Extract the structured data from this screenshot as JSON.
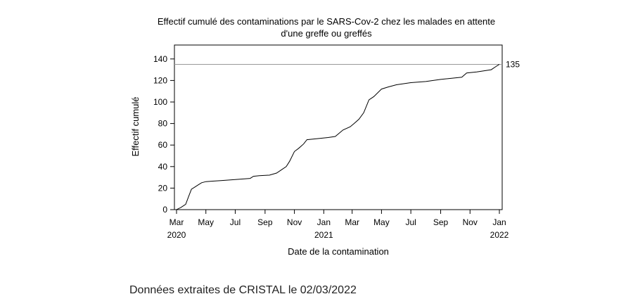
{
  "chart_data": {
    "type": "line",
    "title": [
      "Effectif cumulé des contaminations par le SARS-Cov-2 chez les malades en attente",
      "d'une greffe ou greffés"
    ],
    "xlabel": "Date de la contamination",
    "ylabel": "Effectif cumulé",
    "ylim": [
      0,
      150
    ],
    "yticks": [
      0,
      20,
      40,
      60,
      80,
      100,
      120,
      140
    ],
    "xlim": [
      "2020-03-01",
      "2022-01-01"
    ],
    "xticks": [
      {
        "date": "2020-03-01",
        "label": "Mar",
        "year": "2020"
      },
      {
        "date": "2020-05-01",
        "label": "May",
        "year": ""
      },
      {
        "date": "2020-07-01",
        "label": "Jul",
        "year": ""
      },
      {
        "date": "2020-09-01",
        "label": "Sep",
        "year": ""
      },
      {
        "date": "2020-11-01",
        "label": "Nov",
        "year": ""
      },
      {
        "date": "2021-01-01",
        "label": "Jan",
        "year": "2021"
      },
      {
        "date": "2021-03-01",
        "label": "Mar",
        "year": ""
      },
      {
        "date": "2021-05-01",
        "label": "May",
        "year": ""
      },
      {
        "date": "2021-07-01",
        "label": "Jul",
        "year": ""
      },
      {
        "date": "2021-09-01",
        "label": "Sep",
        "year": ""
      },
      {
        "date": "2021-11-01",
        "label": "Nov",
        "year": ""
      },
      {
        "date": "2022-01-01",
        "label": "Jan",
        "year": "2022"
      }
    ],
    "reference_line": {
      "y": 135,
      "label": "135"
    },
    "grid": false,
    "series": [
      {
        "x": [
          "2020-03-01",
          "2020-03-10",
          "2020-03-20",
          "2020-03-26",
          "2020-04-01",
          "2020-04-08",
          "2020-04-15",
          "2020-04-22",
          "2020-05-01",
          "2020-05-15",
          "2020-06-01",
          "2020-07-01",
          "2020-08-01",
          "2020-08-08",
          "2020-08-20",
          "2020-09-10",
          "2020-09-25",
          "2020-10-05",
          "2020-10-15",
          "2020-10-22",
          "2020-11-01",
          "2020-11-10",
          "2020-11-20",
          "2020-11-27",
          "2020-12-20",
          "2021-01-10",
          "2021-01-25",
          "2021-02-10",
          "2021-02-25",
          "2021-03-05",
          "2021-03-15",
          "2021-03-25",
          "2021-04-05",
          "2021-04-15",
          "2021-05-01",
          "2021-05-15",
          "2021-06-01",
          "2021-07-01",
          "2021-08-01",
          "2021-09-01",
          "2021-10-15",
          "2021-10-25",
          "2021-11-15",
          "2021-12-15",
          "2021-12-25",
          "2022-01-01"
        ],
        "values": [
          0,
          2,
          5,
          12,
          19,
          21,
          23,
          25,
          26,
          26.5,
          27,
          28,
          29,
          31,
          31.5,
          32,
          34,
          37,
          40,
          45,
          54,
          57,
          61,
          65,
          66,
          67,
          68,
          74,
          77,
          80,
          84,
          90,
          102,
          105,
          112,
          114,
          116,
          118,
          119,
          121,
          123,
          127,
          128,
          130,
          133,
          135
        ]
      }
    ]
  },
  "footnote": "Données extraites de CRISTAL le 02/03/2022"
}
